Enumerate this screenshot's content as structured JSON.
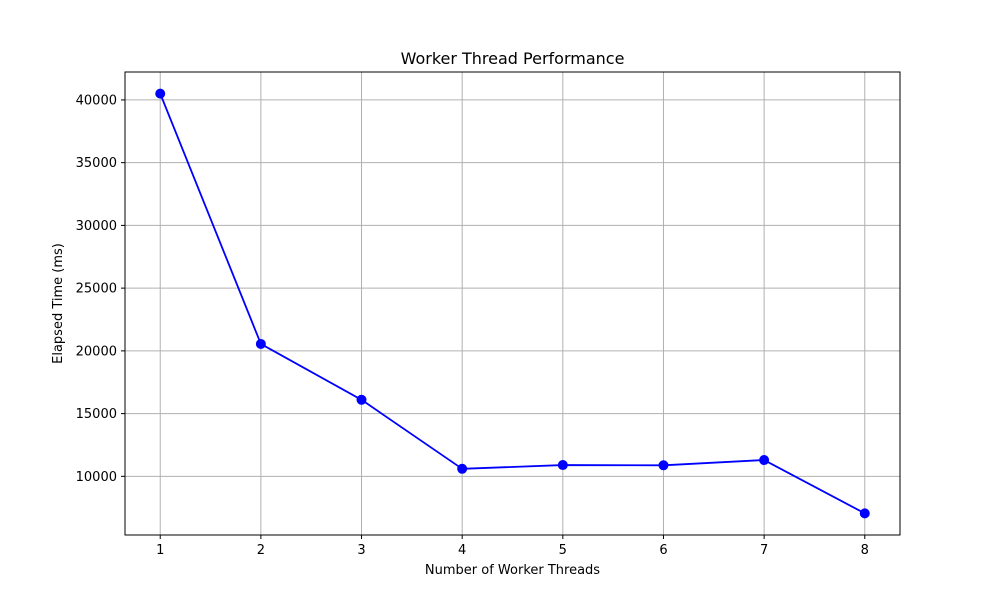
{
  "chart_data": {
    "type": "line",
    "title": "Worker Thread Performance",
    "xlabel": "Number of Worker Threads",
    "ylabel": "Elapsed Time (ms)",
    "x": [
      1,
      2,
      3,
      4,
      5,
      6,
      7,
      8
    ],
    "series": [
      {
        "values": [
          40500,
          20550,
          16100,
          10600,
          10900,
          10880,
          11300,
          7050
        ],
        "color": "#0000ff",
        "marker": "circle"
      }
    ],
    "xticks": [
      "1",
      "2",
      "3",
      "4",
      "5",
      "6",
      "7",
      "8"
    ],
    "yticks": [
      "10000",
      "15000",
      "20000",
      "25000",
      "30000",
      "35000",
      "40000"
    ],
    "xlim": [
      0.65,
      8.35
    ],
    "ylim": [
      5325,
      42225
    ],
    "grid": true,
    "legend": "none"
  }
}
